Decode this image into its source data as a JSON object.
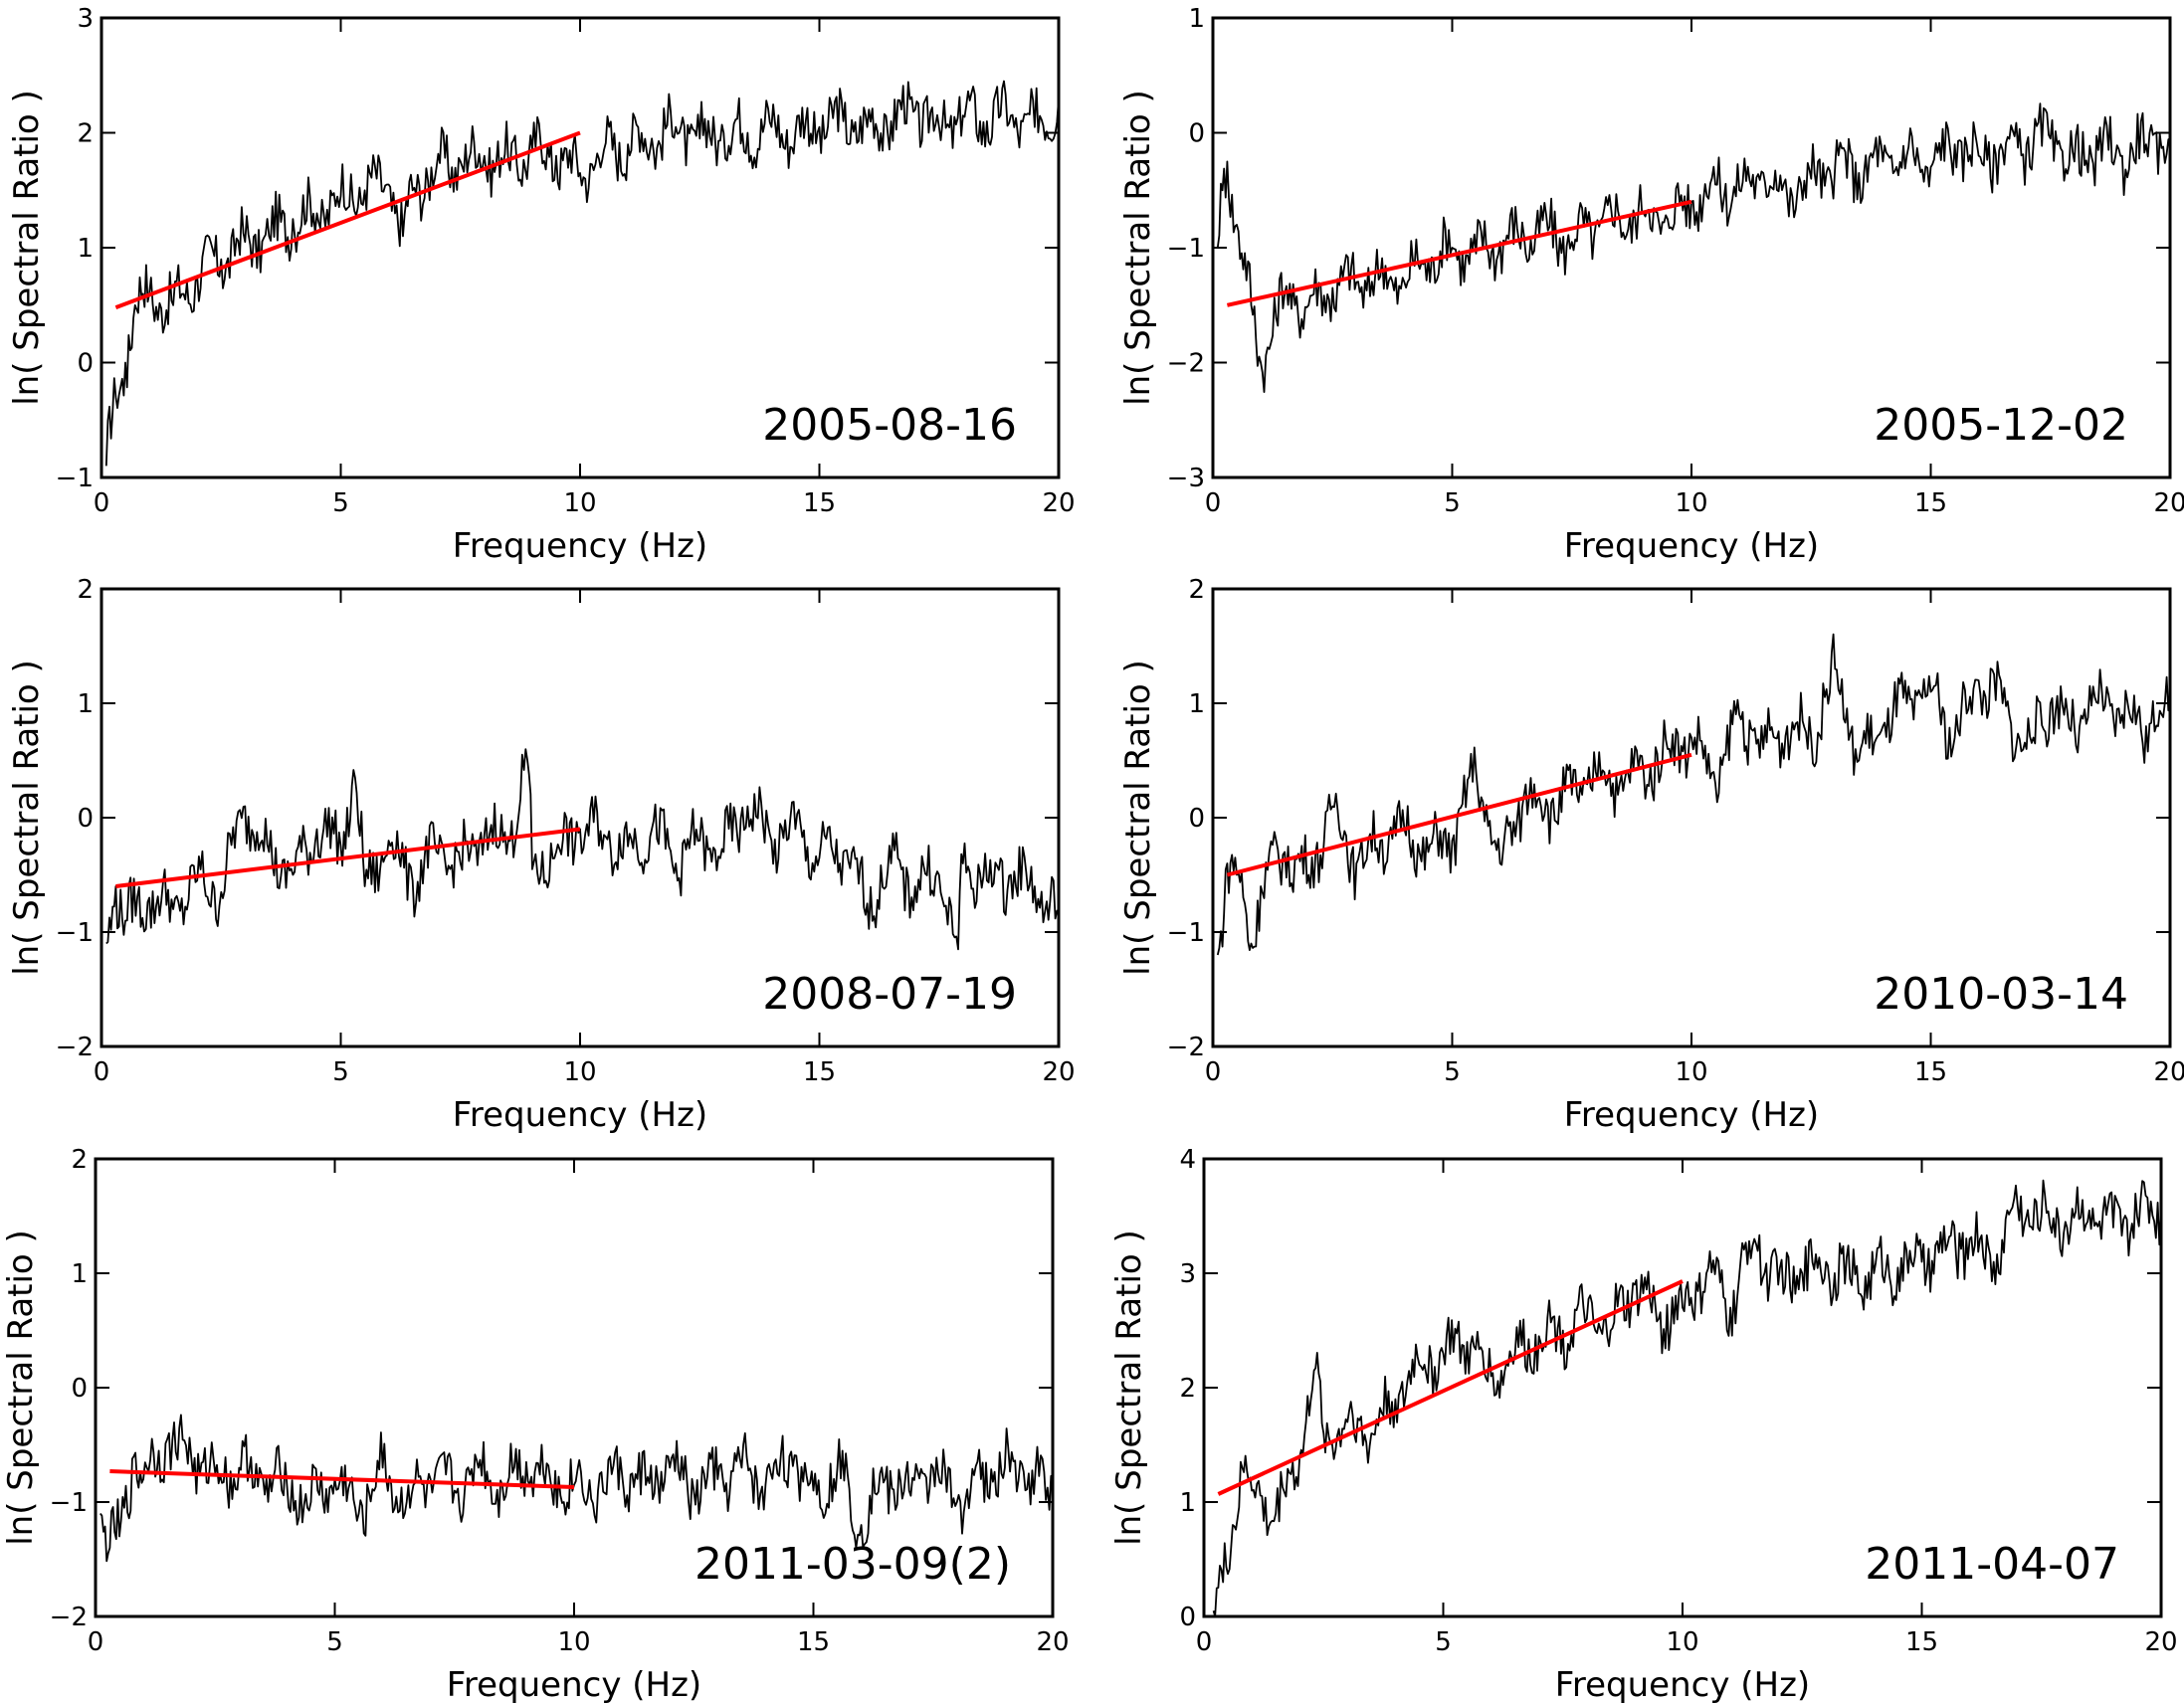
{
  "chart_data": [
    {
      "type": "line",
      "annotation": "2005-08-16",
      "xlabel": "Frequency (Hz)",
      "ylabel": "ln( Spectral Ratio )",
      "xlim": [
        0,
        20
      ],
      "ylim": [
        -1,
        3
      ],
      "xticks": [
        0,
        5,
        10,
        15,
        20
      ],
      "yticks": [
        -1,
        0,
        1,
        2,
        3
      ],
      "tick_labels": {
        "x": [
          "0",
          "5",
          "10",
          "15",
          "20"
        ],
        "y": [
          "−1",
          "0",
          "1",
          "2",
          "3"
        ]
      },
      "series": [
        {
          "role": "spectral_ratio",
          "color": "#000000",
          "x": [
            0.1,
            0.3,
            0.5,
            0.7,
            1,
            1.5,
            2,
            2.5,
            3,
            3.5,
            4,
            4.5,
            5,
            5.5,
            6,
            6.3,
            6.5,
            7,
            7.5,
            8,
            8.5,
            9,
            9.5,
            10,
            10.5,
            11,
            11.5,
            12,
            12.5,
            13,
            13.5,
            14,
            14.5,
            15,
            15.5,
            16,
            16.5,
            17,
            17.5,
            18,
            18.5,
            19,
            19.5,
            20
          ],
          "y": [
            -0.9,
            -0.3,
            0.0,
            0.5,
            0.6,
            0.5,
            0.75,
            0.9,
            1.05,
            1.1,
            1.25,
            1.3,
            1.45,
            1.5,
            1.55,
            1.1,
            1.5,
            1.7,
            1.75,
            1.8,
            1.75,
            1.85,
            1.8,
            1.65,
            1.85,
            1.9,
            1.95,
            2.05,
            1.95,
            2.0,
            2.0,
            2.05,
            2.0,
            2.05,
            2.1,
            2.05,
            2.1,
            2.2,
            2.05,
            2.15,
            2.1,
            2.15,
            2.05,
            2.3
          ]
        },
        {
          "role": "linear_fit",
          "color": "#ff0000",
          "x": [
            0.3,
            10
          ],
          "y": [
            0.48,
            2.0
          ]
        }
      ]
    },
    {
      "type": "line",
      "annotation": "2005-12-02",
      "xlabel": "Frequency (Hz)",
      "ylabel": "ln( Spectral Ratio )",
      "xlim": [
        0,
        20
      ],
      "ylim": [
        -3,
        1
      ],
      "xticks": [
        0,
        5,
        10,
        15,
        20
      ],
      "yticks": [
        -3,
        -2,
        -1,
        0,
        1
      ],
      "tick_labels": {
        "x": [
          "0",
          "5",
          "10",
          "15",
          "20"
        ],
        "y": [
          "−3",
          "−2",
          "−1",
          "0",
          "1"
        ]
      },
      "series": [
        {
          "role": "spectral_ratio",
          "color": "#000000",
          "x": [
            0.1,
            0.2,
            0.3,
            0.5,
            0.8,
            1,
            1.5,
            2,
            2.5,
            3,
            3.5,
            4,
            4.5,
            5,
            5.5,
            6,
            6.5,
            7,
            7.5,
            8,
            8.5,
            9,
            9.5,
            10,
            10.5,
            11,
            11.5,
            12,
            12.5,
            13,
            13.5,
            14,
            14.5,
            15,
            15.5,
            16,
            16.5,
            17,
            17.5,
            18,
            18.5,
            19,
            19.5,
            20
          ],
          "y": [
            -1.0,
            -0.5,
            -0.25,
            -0.8,
            -1.5,
            -2.0,
            -1.4,
            -1.5,
            -1.35,
            -1.3,
            -1.25,
            -1.3,
            -1.1,
            -1.0,
            -1.05,
            -0.95,
            -0.9,
            -0.85,
            -0.95,
            -0.8,
            -0.75,
            -0.7,
            -0.75,
            -0.6,
            -0.45,
            -0.5,
            -0.35,
            -0.55,
            -0.4,
            -0.3,
            -0.35,
            -0.25,
            -0.2,
            -0.3,
            -0.1,
            -0.2,
            -0.15,
            -0.1,
            -0.05,
            -0.25,
            -0.15,
            -0.2,
            -0.1,
            -0.05
          ]
        },
        {
          "role": "linear_fit",
          "color": "#ff0000",
          "x": [
            0.3,
            10
          ],
          "y": [
            -1.5,
            -0.6
          ]
        }
      ]
    },
    {
      "type": "line",
      "annotation": "2008-07-19",
      "xlabel": "Frequency (Hz)",
      "ylabel": "ln( Spectral Ratio )",
      "xlim": [
        0,
        20
      ],
      "ylim": [
        -2,
        2
      ],
      "xticks": [
        0,
        5,
        10,
        15,
        20
      ],
      "yticks": [
        -2,
        -1,
        0,
        1,
        2
      ],
      "tick_labels": {
        "x": [
          "0",
          "5",
          "10",
          "15",
          "20"
        ],
        "y": [
          "−2",
          "−1",
          "0",
          "1",
          "2"
        ]
      },
      "series": [
        {
          "role": "spectral_ratio",
          "color": "#000000",
          "x": [
            0.1,
            0.3,
            0.5,
            1,
            1.5,
            2,
            2.5,
            3,
            3.5,
            4,
            4.5,
            5,
            5.3,
            5.5,
            6,
            6.5,
            7,
            7.5,
            8,
            8.5,
            8.9,
            9,
            9.5,
            10,
            10.5,
            11,
            11.5,
            12,
            12.5,
            13,
            13.5,
            14,
            14.5,
            15,
            15.5,
            16,
            16.5,
            17,
            17.5,
            17.9,
            18,
            18.5,
            19,
            19.5,
            20
          ],
          "y": [
            -1.1,
            -0.6,
            -0.9,
            -0.7,
            -0.8,
            -0.55,
            -0.65,
            0.1,
            -0.3,
            -0.5,
            -0.1,
            -0.25,
            0.35,
            -0.6,
            -0.2,
            -0.55,
            -0.3,
            -0.4,
            -0.15,
            -0.2,
            0.5,
            -0.45,
            -0.3,
            -0.1,
            -0.15,
            -0.25,
            -0.1,
            -0.4,
            -0.2,
            -0.3,
            0.1,
            -0.2,
            -0.1,
            -0.35,
            -0.3,
            -0.75,
            -0.4,
            -0.6,
            -0.5,
            -1.15,
            -0.4,
            -0.55,
            -0.5,
            -0.6,
            -0.85
          ]
        },
        {
          "role": "linear_fit",
          "color": "#ff0000",
          "x": [
            0.3,
            10
          ],
          "y": [
            -0.6,
            -0.1
          ]
        }
      ]
    },
    {
      "type": "line",
      "annotation": "2010-03-14",
      "xlabel": "Frequency (Hz)",
      "ylabel": "ln( Spectral Ratio )",
      "xlim": [
        0,
        20
      ],
      "ylim": [
        -2,
        2
      ],
      "xticks": [
        0,
        5,
        10,
        15,
        20
      ],
      "yticks": [
        -2,
        -1,
        0,
        1,
        2
      ],
      "tick_labels": {
        "x": [
          "0",
          "5",
          "10",
          "15",
          "20"
        ],
        "y": [
          "−2",
          "−1",
          "0",
          "1",
          "2"
        ]
      },
      "series": [
        {
          "role": "spectral_ratio",
          "color": "#000000",
          "x": [
            0.1,
            0.3,
            0.5,
            0.8,
            1,
            1.5,
            2,
            2.5,
            3,
            3.5,
            4,
            4.5,
            5,
            5.5,
            6,
            6.5,
            7,
            7.5,
            8,
            8.5,
            9,
            9.5,
            10,
            10.5,
            11,
            11.5,
            12,
            12.5,
            13,
            13.5,
            14,
            14.5,
            15,
            15.5,
            16,
            16.5,
            17,
            17.5,
            18,
            18.5,
            19,
            19.5,
            20
          ],
          "y": [
            -1.2,
            -0.4,
            -0.5,
            -1.1,
            -0.6,
            -0.3,
            -0.5,
            0.1,
            -0.4,
            -0.2,
            -0.1,
            -0.3,
            -0.2,
            0.4,
            -0.4,
            0.2,
            0.1,
            0.2,
            0.4,
            0.3,
            0.4,
            0.6,
            0.7,
            0.3,
            0.9,
            0.6,
            0.8,
            0.7,
            1.3,
            0.5,
            0.8,
            1.0,
            1.1,
            0.7,
            1.2,
            1.0,
            0.6,
            1.0,
            0.8,
            1.0,
            0.9,
            0.8,
            1.0
          ]
        },
        {
          "role": "linear_fit",
          "color": "#ff0000",
          "x": [
            0.3,
            10
          ],
          "y": [
            -0.5,
            0.55
          ]
        }
      ]
    },
    {
      "type": "line",
      "annotation": "2011-03-09(2)",
      "xlabel": "Frequency (Hz)",
      "ylabel": "ln( Spectral Ratio )",
      "xlim": [
        0,
        20
      ],
      "ylim": [
        -2,
        2
      ],
      "xticks": [
        0,
        5,
        10,
        15,
        20
      ],
      "yticks": [
        -2,
        -1,
        0,
        1,
        2
      ],
      "tick_labels": {
        "x": [
          "0",
          "5",
          "10",
          "15",
          "20"
        ],
        "y": [
          "−2",
          "−1",
          "0",
          "1",
          "2"
        ]
      },
      "series": [
        {
          "role": "spectral_ratio",
          "color": "#000000",
          "x": [
            0.1,
            0.3,
            0.5,
            0.8,
            1,
            1.5,
            2,
            2.5,
            3,
            3.5,
            4,
            4.5,
            5,
            5.5,
            6,
            6.5,
            7,
            7.5,
            8,
            8.5,
            9,
            9.5,
            10,
            10.5,
            11,
            11.5,
            12,
            12.5,
            13,
            13.5,
            14,
            14.5,
            15,
            15.5,
            16,
            16.5,
            17,
            17.5,
            18,
            18.5,
            19,
            19.5,
            20
          ],
          "y": [
            -1.1,
            -1.4,
            -1.3,
            -0.6,
            -0.8,
            -0.45,
            -0.6,
            -0.75,
            -0.7,
            -0.8,
            -0.85,
            -1.0,
            -0.8,
            -1.1,
            -0.7,
            -1.0,
            -0.8,
            -0.9,
            -0.7,
            -0.85,
            -0.65,
            -0.8,
            -0.85,
            -0.9,
            -0.75,
            -0.85,
            -0.7,
            -0.9,
            -0.8,
            -0.7,
            -0.85,
            -0.6,
            -0.9,
            -0.7,
            -1.2,
            -0.8,
            -0.9,
            -0.7,
            -1.0,
            -0.8,
            -0.7,
            -0.75,
            -0.9
          ]
        },
        {
          "role": "linear_fit",
          "color": "#ff0000",
          "x": [
            0.3,
            10
          ],
          "y": [
            -0.73,
            -0.87
          ]
        }
      ]
    },
    {
      "type": "line",
      "annotation": "2011-04-07",
      "xlabel": "Frequency (Hz)",
      "ylabel": "ln( Spectral Ratio )",
      "xlim": [
        0,
        20
      ],
      "ylim": [
        0,
        4
      ],
      "xticks": [
        0,
        5,
        10,
        15,
        20
      ],
      "yticks": [
        0,
        1,
        2,
        3,
        4
      ],
      "tick_labels": {
        "x": [
          "0",
          "5",
          "10",
          "15",
          "20"
        ],
        "y": [
          "0",
          "1",
          "2",
          "3",
          "4"
        ]
      },
      "series": [
        {
          "role": "spectral_ratio",
          "color": "#000000",
          "x": [
            0.2,
            0.4,
            0.6,
            0.8,
            1,
            1.5,
            2,
            2.3,
            2.5,
            3,
            3.5,
            4,
            4.5,
            5,
            5.5,
            6,
            6.5,
            7,
            7.5,
            8,
            8.5,
            9,
            9.5,
            10,
            10.5,
            11,
            11.5,
            12,
            12.5,
            13,
            13.5,
            14,
            14.5,
            15,
            15.5,
            16,
            16.5,
            17,
            17.5,
            18,
            18.5,
            19,
            19.5,
            20
          ],
          "y": [
            0.05,
            0.3,
            0.8,
            1.3,
            1.1,
            0.9,
            1.4,
            2.15,
            1.6,
            1.7,
            1.6,
            1.9,
            2.2,
            2.3,
            2.4,
            2.1,
            2.3,
            2.45,
            2.5,
            2.6,
            2.5,
            2.9,
            2.6,
            2.7,
            3.0,
            2.7,
            3.3,
            2.9,
            3.0,
            3.1,
            2.95,
            3.0,
            3.05,
            3.1,
            3.2,
            3.3,
            3.1,
            3.6,
            3.5,
            3.45,
            3.55,
            3.4,
            3.5,
            3.6
          ]
        },
        {
          "role": "linear_fit",
          "color": "#ff0000",
          "x": [
            0.3,
            10
          ],
          "y": [
            1.07,
            2.93
          ]
        }
      ]
    }
  ]
}
